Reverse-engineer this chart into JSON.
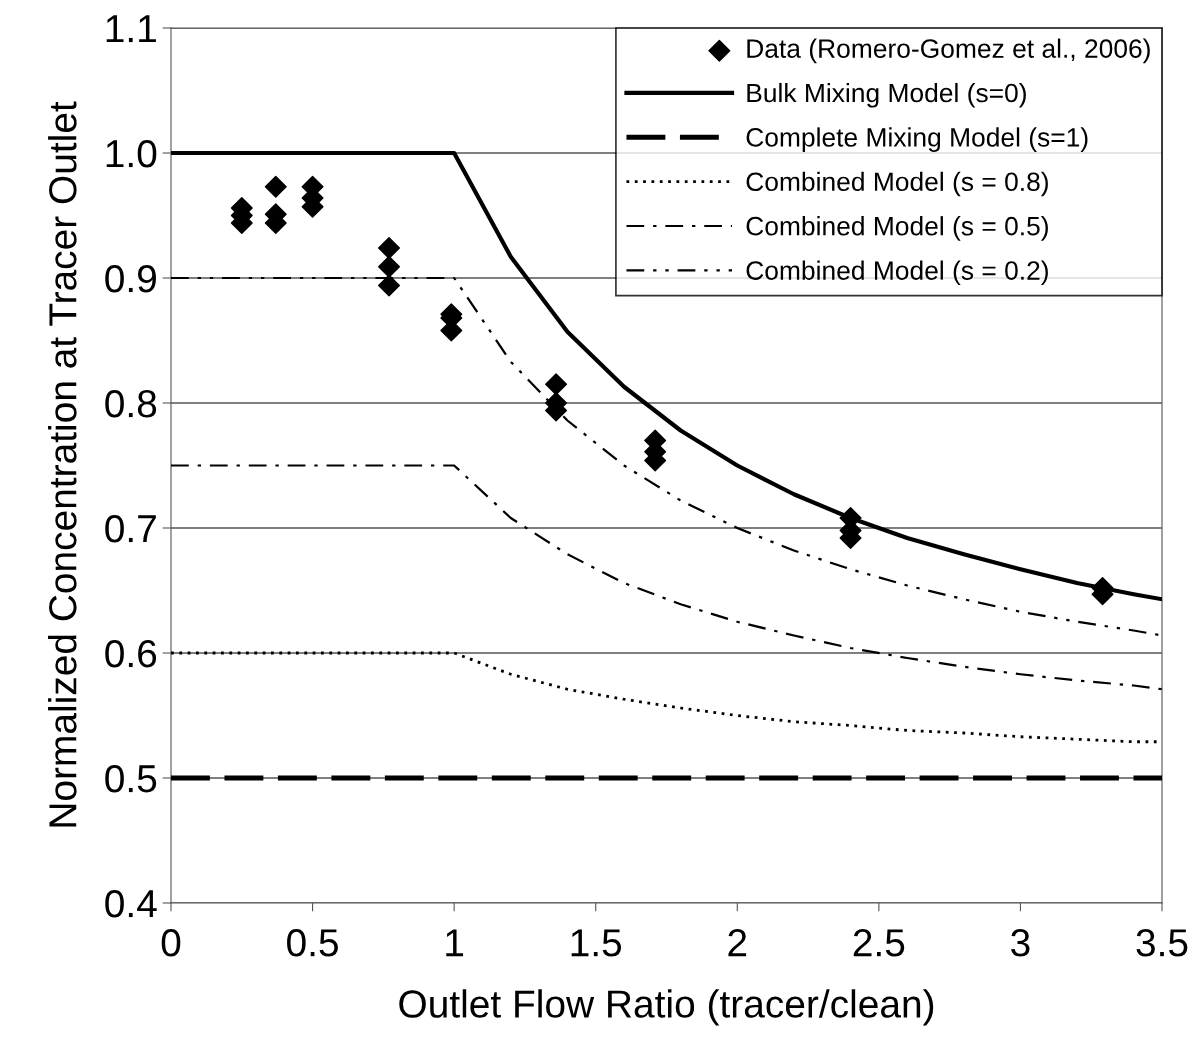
{
  "chart_data": {
    "type": "line",
    "xlabel": "Outlet Flow Ratio (tracer/clean)",
    "ylabel": "Normalized Concentration at Tracer Outlet",
    "xlim": [
      0,
      3.5
    ],
    "xticks": [
      0,
      0.5,
      1,
      1.5,
      2,
      2.5,
      3,
      3.5
    ],
    "ylim": [
      0.4,
      1.1
    ],
    "yticks": [
      {
        "value": 0.4,
        "label": "0.4"
      },
      {
        "value": 0.5,
        "label": "0.5"
      },
      {
        "value": 0.6,
        "label": "0.6"
      },
      {
        "value": 0.7,
        "label": "0.7"
      },
      {
        "value": 0.8,
        "label": "0.8"
      },
      {
        "value": 0.9,
        "label": "0.9"
      },
      {
        "value": 1.0,
        "label": "1.0"
      },
      {
        "value": 1.1,
        "label": "1.1"
      }
    ],
    "grid": "y",
    "legend": "top right",
    "series": [
      {
        "name": "Data (Romero-Gomez et al., 2006)",
        "type": "scatter",
        "marker": "diamond",
        "color": "#000000",
        "x": [
          0.25,
          0.25,
          0.25,
          0.37,
          0.37,
          0.37,
          0.5,
          0.5,
          0.5,
          0.77,
          0.77,
          0.77,
          0.99,
          0.99,
          0.99,
          1.36,
          1.36,
          1.36,
          1.71,
          1.71,
          1.71,
          2.4,
          2.4,
          2.4,
          3.29,
          3.29
        ],
        "values": [
          0.956,
          0.95,
          0.944,
          0.973,
          0.951,
          0.944,
          0.973,
          0.964,
          0.957,
          0.924,
          0.909,
          0.894,
          0.871,
          0.868,
          0.858,
          0.815,
          0.8,
          0.794,
          0.77,
          0.761,
          0.754,
          0.708,
          0.698,
          0.692,
          0.652,
          0.647
        ]
      },
      {
        "name": "Bulk Mixing Model (s=0)",
        "line_style": "solid",
        "color": "#000000",
        "x": [
          0,
          1,
          1.2,
          1.4,
          1.6,
          1.8,
          2.0,
          2.2,
          2.4,
          2.6,
          2.8,
          3.0,
          3.2,
          3.4,
          3.5
        ],
        "values": [
          1.0,
          1.0,
          0.917,
          0.857,
          0.813,
          0.778,
          0.75,
          0.727,
          0.708,
          0.692,
          0.679,
          0.667,
          0.656,
          0.647,
          0.643
        ]
      },
      {
        "name": "Complete Mixing Model (s=1)",
        "line_style": "dashed",
        "color": "#000000",
        "x": [
          0,
          3.5
        ],
        "values": [
          0.5,
          0.5
        ]
      },
      {
        "name": "Combined Model (s = 0.8)",
        "line_style": "dotted",
        "color": "#000000",
        "x": [
          0,
          1,
          1.2,
          1.4,
          1.6,
          1.8,
          2.0,
          2.2,
          2.4,
          2.6,
          2.8,
          3.0,
          3.2,
          3.4,
          3.5
        ],
        "values": [
          0.6,
          0.6,
          0.583,
          0.571,
          0.563,
          0.556,
          0.55,
          0.545,
          0.542,
          0.538,
          0.536,
          0.533,
          0.531,
          0.529,
          0.529
        ]
      },
      {
        "name": "Combined Model (s = 0.5)",
        "line_style": "dashdot",
        "color": "#000000",
        "x": [
          0,
          1,
          1.2,
          1.4,
          1.6,
          1.8,
          2.0,
          2.2,
          2.4,
          2.6,
          2.8,
          3.0,
          3.2,
          3.4,
          3.5
        ],
        "values": [
          0.75,
          0.75,
          0.708,
          0.679,
          0.656,
          0.639,
          0.625,
          0.614,
          0.604,
          0.596,
          0.589,
          0.583,
          0.578,
          0.574,
          0.571
        ]
      },
      {
        "name": "Combined Model (s = 0.2)",
        "line_style": "dashdotdot",
        "color": "#000000",
        "x": [
          0,
          1,
          1.2,
          1.4,
          1.6,
          1.8,
          2.0,
          2.2,
          2.4,
          2.6,
          2.8,
          3.0,
          3.2,
          3.4,
          3.5
        ],
        "values": [
          0.9,
          0.9,
          0.833,
          0.786,
          0.75,
          0.722,
          0.7,
          0.682,
          0.667,
          0.654,
          0.643,
          0.633,
          0.625,
          0.618,
          0.614
        ]
      }
    ]
  }
}
